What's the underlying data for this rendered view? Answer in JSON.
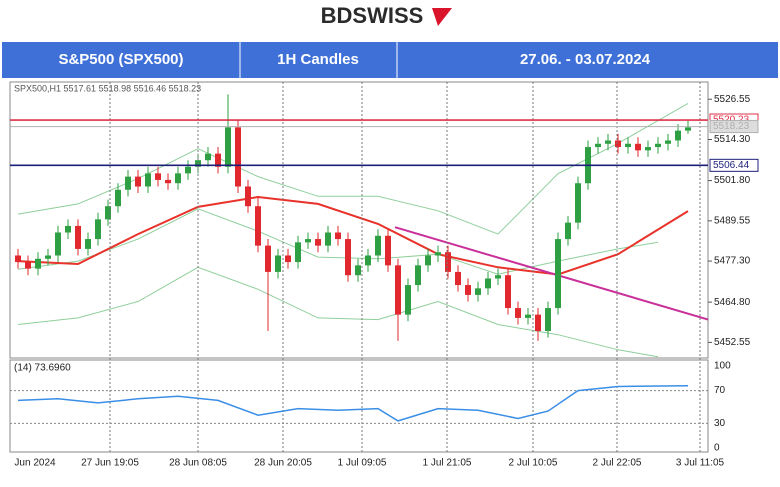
{
  "logo": "BDSWISS",
  "header": [
    "S&P500 (SPX500)",
    "1H Candles",
    "27.06. - 03.07.2024"
  ],
  "chart_data": {
    "type": "candlestick",
    "info": "SPX500,H1  5517.61 5518.98 5516.46 5518.23",
    "up_color": "#2ea043",
    "down_color": "#e0282e",
    "open": [
      5479,
      5477,
      5475,
      5478,
      5479,
      5486,
      5488,
      5481,
      5484,
      5490,
      5494,
      5499,
      5503,
      5500,
      5504,
      5502,
      5501,
      5504,
      5506,
      5508,
      5510,
      5506,
      5518,
      5500,
      5494,
      5482,
      5474,
      5479,
      5477,
      5483,
      5484,
      5482,
      5486,
      5484,
      5473,
      5476,
      5479,
      5485,
      5476,
      5461,
      5470,
      5476,
      5479,
      5480,
      5474,
      5470,
      5467,
      5469,
      5472,
      5473,
      5463,
      5460,
      5461,
      5456,
      5463,
      5484,
      5489,
      5501,
      5512,
      5513,
      5514,
      5512,
      5513,
      5511,
      5512,
      5513,
      5514,
      5517
    ],
    "high": [
      5481,
      5479,
      5480,
      5481,
      5488,
      5490,
      5490,
      5486,
      5492,
      5496,
      5501,
      5505,
      5505,
      5506,
      5506,
      5504,
      5506,
      5508,
      5510,
      5512,
      5512,
      5528,
      5520,
      5502,
      5497,
      5484,
      5481,
      5481,
      5485,
      5486,
      5486,
      5488,
      5488,
      5486,
      5478,
      5481,
      5487,
      5487,
      5478,
      5472,
      5478,
      5481,
      5482,
      5482,
      5476,
      5472,
      5471,
      5474,
      5475,
      5475,
      5465,
      5463,
      5463,
      5465,
      5486,
      5491,
      5503,
      5514,
      5515,
      5516,
      5516,
      5515,
      5515,
      5514,
      5515,
      5516,
      5519,
      5520
    ],
    "low": [
      5475,
      5473,
      5473,
      5476,
      5477,
      5484,
      5479,
      5479,
      5482,
      5488,
      5492,
      5497,
      5498,
      5498,
      5500,
      5499,
      5499,
      5502,
      5504,
      5506,
      5504,
      5504,
      5498,
      5492,
      5480,
      5456,
      5472,
      5475,
      5475,
      5481,
      5480,
      5480,
      5482,
      5471,
      5471,
      5474,
      5477,
      5474,
      5453,
      5459,
      5468,
      5474,
      5477,
      5472,
      5468,
      5465,
      5465,
      5467,
      5470,
      5461,
      5458,
      5458,
      5453,
      5454,
      5461,
      5482,
      5487,
      5499,
      5510,
      5511,
      5510,
      5510,
      5509,
      5509,
      5510,
      5511,
      5512,
      5516
    ],
    "close": [
      5477,
      5475,
      5478,
      5479,
      5486,
      5488,
      5481,
      5484,
      5490,
      5494,
      5499,
      5503,
      5500,
      5504,
      5502,
      5501,
      5504,
      5506,
      5508,
      5510,
      5506,
      5518,
      5500,
      5494,
      5482,
      5474,
      5479,
      5477,
      5483,
      5484,
      5482,
      5486,
      5484,
      5473,
      5476,
      5479,
      5485,
      5476,
      5461,
      5470,
      5476,
      5479,
      5480,
      5474,
      5470,
      5467,
      5469,
      5472,
      5473,
      5463,
      5460,
      5461,
      5456,
      5463,
      5484,
      5489,
      5501,
      5512,
      5513,
      5514,
      5512,
      5513,
      5511,
      5512,
      5513,
      5514,
      5517,
      5518
    ],
    "overlays": [
      {
        "color": "#8fcf9a",
        "x": [
          0,
          6,
          12,
          18,
          24,
          30,
          36,
          42,
          48,
          54,
          60,
          67
        ],
        "values": [
          5491.6,
          5494.7,
          5502.4,
          5511.5,
          5503,
          5497,
          5497,
          5492.6,
          5485.5,
          5503.9,
          5513.1,
          5525.3
        ]
      },
      {
        "color": "#8fcf9a",
        "x": [
          0,
          6,
          12,
          18,
          24,
          30,
          36,
          42,
          48,
          54,
          60,
          64
        ],
        "values": [
          5474.8,
          5477.3,
          5484,
          5493.2,
          5486.4,
          5478.5,
          5478,
          5479.4,
          5473.3,
          5477.3,
          5481,
          5483
        ]
      },
      {
        "color": "#8fcf9a",
        "x": [
          0,
          6,
          12,
          18,
          24,
          30,
          36,
          42,
          48,
          54,
          60,
          64
        ],
        "values": [
          5458,
          5460,
          5465,
          5475.4,
          5468.7,
          5460,
          5459.5,
          5465,
          5458,
          5454.9,
          5450.3,
          5448.2
        ]
      },
      {
        "color": "#e8322a",
        "x": [
          0,
          6,
          12,
          18,
          24,
          30,
          36,
          42,
          48,
          54,
          60,
          67
        ],
        "values": [
          5477.3,
          5476.4,
          5485.5,
          5493.8,
          5496.8,
          5494.7,
          5488.6,
          5479.4,
          5475.4,
          5473.2,
          5479.4,
          5492.5
        ]
      },
      {
        "color": "#c9309a",
        "x": [
          37.7,
          69
        ],
        "values": [
          5487.6,
          5459.5
        ]
      }
    ],
    "levels": [
      {
        "value": 5520.23,
        "color": "#e0304a"
      },
      {
        "value": 5518.23,
        "color": "#b0b0b0"
      },
      {
        "value": 5506.44,
        "color": "#1c1f7a"
      }
    ],
    "ylim": [
      5447.8,
      5531.8
    ],
    "yticks": [
      5526.55,
      {
        "value": 5514.3,
        "label": "5514.30"
      },
      {
        "value": 5501.8,
        "label": "5501.80"
      },
      5489.55,
      {
        "value": 5477.3,
        "label": "5477.30"
      },
      {
        "value": 5464.8,
        "label": "5464.80"
      },
      5452.55
    ],
    "xlim": [
      -0.8,
      69
    ],
    "xticks": [
      {
        "value": 1.7,
        "label": "Jun 2024"
      },
      {
        "value": 9.2,
        "label": "27 Jun 19:05"
      },
      {
        "value": 18,
        "label": "28 Jun 08:05"
      },
      {
        "value": 26.5,
        "label": "28 Jun 20:05"
      },
      {
        "value": 34.4,
        "label": "1 Jul 09:05"
      },
      {
        "value": 42.9,
        "label": "1 Jul 21:05"
      },
      {
        "value": 51.5,
        "label": "2 Jul 10:05"
      },
      {
        "value": 59.9,
        "label": "2 Jul 22:05"
      },
      {
        "value": 68.2,
        "label": "3 Jul 11:05"
      }
    ],
    "rsi": {
      "label": "(14) 73.6960",
      "color": "#3a8ee6",
      "x": [
        0,
        4,
        8,
        12,
        16,
        20,
        24,
        28,
        32,
        36,
        38,
        42,
        46,
        50,
        53,
        56,
        60,
        67
      ],
      "values": [
        58,
        60,
        55,
        60,
        63,
        58,
        40,
        48,
        46,
        48,
        33,
        48,
        46,
        36,
        45,
        70,
        75,
        76
      ],
      "ylim": [
        0,
        100
      ],
      "yticks": [
        100,
        70,
        30,
        0
      ]
    }
  }
}
